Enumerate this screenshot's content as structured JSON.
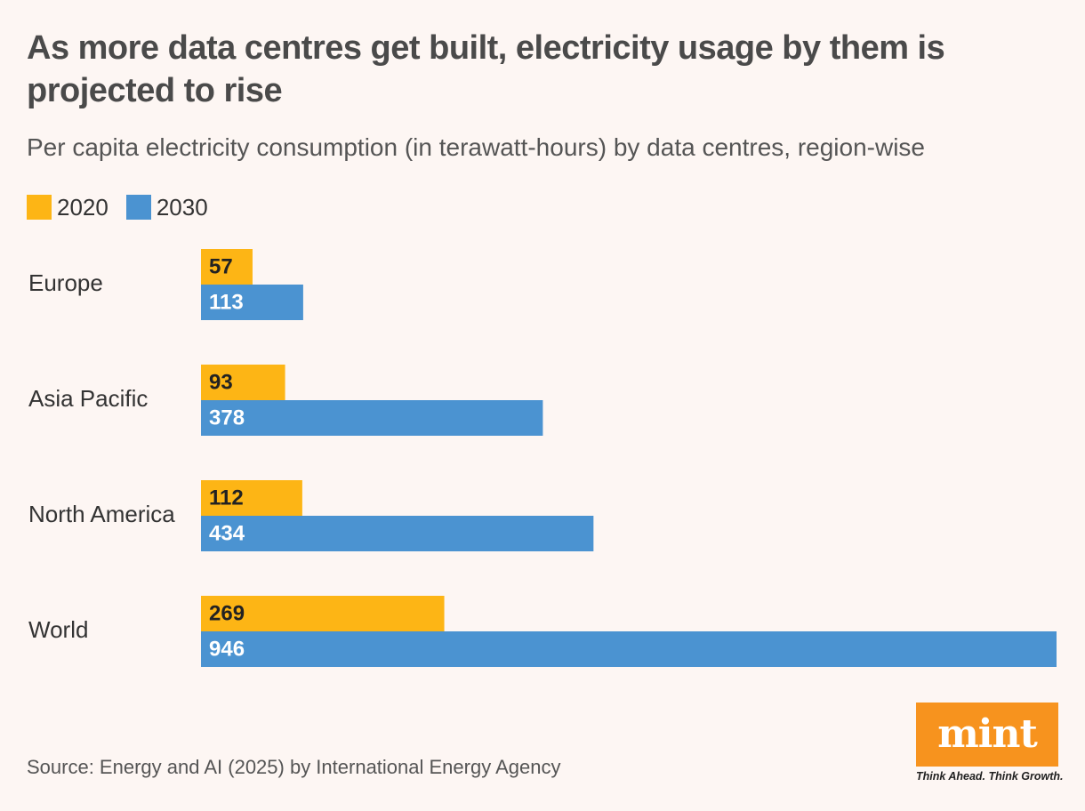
{
  "header": {
    "title": "As more data centres get built, electricity usage by them is projected to rise",
    "subtitle": "Per capita electricity consumption (in terawatt-hours) by data centres, region-wise"
  },
  "legend": {
    "items": [
      {
        "label": "2020",
        "color": "#fdb515"
      },
      {
        "label": "2030",
        "color": "#4b93d1"
      }
    ]
  },
  "chart_data": {
    "type": "bar",
    "orientation": "horizontal",
    "title": "As more data centres get built, electricity usage by them is projected to rise",
    "subtitle": "Per capita electricity consumption (in terawatt-hours) by data centres, region-wise",
    "categories": [
      "Europe",
      "Asia Pacific",
      "North America",
      "World"
    ],
    "series": [
      {
        "name": "2020",
        "color": "#fdb515",
        "values": [
          57,
          93,
          112,
          269
        ]
      },
      {
        "name": "2030",
        "color": "#4b93d1",
        "values": [
          113,
          378,
          434,
          946
        ]
      }
    ],
    "xlim": [
      0,
      946
    ],
    "grid": false,
    "legend_position": "top-left",
    "data_labels": true
  },
  "footer": {
    "source": "Source: Energy and AI (2025) by International Energy Agency"
  },
  "logo": {
    "wordmark": "mint",
    "tagline": "Think Ahead. Think Growth.",
    "color": "#f7931e"
  }
}
